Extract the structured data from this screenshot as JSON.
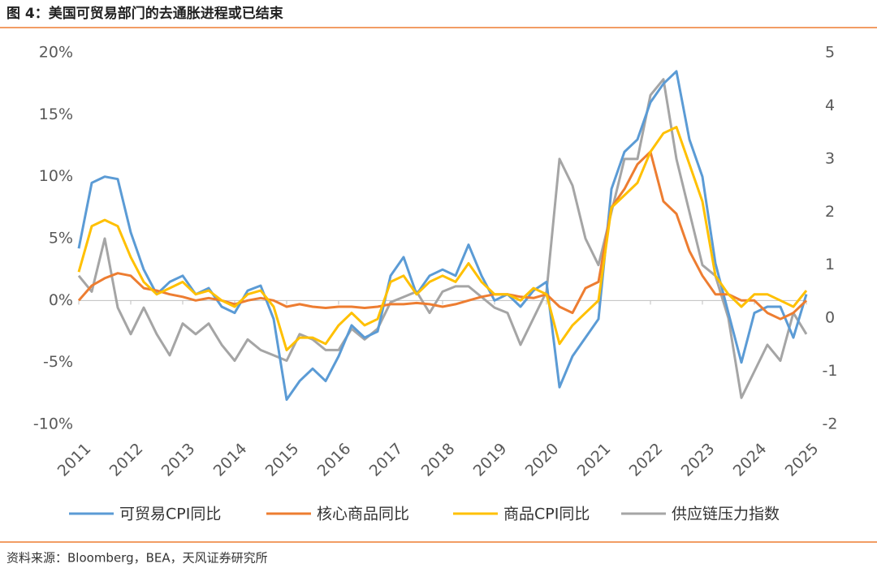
{
  "title": "图 4：美国可贸易部门的去通胀进程或已结束",
  "source": "资料来源：Bloomberg，BEA，天风证券研究所",
  "chart_data": {
    "type": "line",
    "x": [
      2011,
      2011.25,
      2011.5,
      2011.75,
      2012,
      2012.25,
      2012.5,
      2012.75,
      2013,
      2013.25,
      2013.5,
      2013.75,
      2014,
      2014.25,
      2014.5,
      2014.75,
      2015,
      2015.25,
      2015.5,
      2015.75,
      2016,
      2016.25,
      2016.5,
      2016.75,
      2017,
      2017.25,
      2017.5,
      2017.75,
      2018,
      2018.25,
      2018.5,
      2018.75,
      2019,
      2019.25,
      2019.5,
      2019.75,
      2020,
      2020.25,
      2020.5,
      2020.75,
      2021,
      2021.25,
      2021.5,
      2021.75,
      2022,
      2022.25,
      2022.5,
      2022.75,
      2023,
      2023.25,
      2023.5,
      2023.75,
      2024,
      2024.25,
      2024.5,
      2024.75,
      2025
    ],
    "xlim": [
      2011,
      2025
    ],
    "xticks": [
      2011,
      2012,
      2013,
      2014,
      2015,
      2016,
      2017,
      2018,
      2019,
      2020,
      2021,
      2022,
      2023,
      2024,
      2025
    ],
    "ylim": [
      -10,
      20
    ],
    "yticks": [
      {
        "value": -10,
        "label": "-10%"
      },
      {
        "value": -5,
        "label": "-5%"
      },
      {
        "value": 0,
        "label": "0%"
      },
      {
        "value": 5,
        "label": "5%"
      },
      {
        "value": 10,
        "label": "10%"
      },
      {
        "value": 15,
        "label": "15%"
      },
      {
        "value": 20,
        "label": "20%"
      }
    ],
    "y2lim": [
      -2,
      5
    ],
    "y2ticks": [
      -2,
      -1,
      0,
      1,
      2,
      3,
      4,
      5
    ],
    "series": [
      {
        "name": "可贸易CPI同比",
        "color": "#5b9bd5",
        "values": [
          4.2,
          9.5,
          10.0,
          9.8,
          5.5,
          2.5,
          0.5,
          1.5,
          2.0,
          0.5,
          1.0,
          -0.5,
          -1.0,
          0.8,
          1.2,
          -1.5,
          -8.0,
          -6.5,
          -5.5,
          -6.5,
          -4.5,
          -2.0,
          -3.0,
          -2.5,
          2.0,
          3.5,
          0.5,
          2.0,
          2.5,
          2.0,
          4.5,
          2.0,
          0.0,
          0.5,
          -0.5,
          0.8,
          1.5,
          -7.0,
          -4.5,
          -3.0,
          -1.5,
          9.0,
          12.0,
          13.0,
          16.0,
          17.5,
          18.5,
          13.0,
          10.0,
          3.0,
          -1.0,
          -5.0,
          -1.0,
          -0.5,
          -0.5,
          -3.0,
          0.5
        ]
      },
      {
        "name": "核心商品同比",
        "color": "#ed7d31",
        "values": [
          0,
          1.2,
          1.8,
          2.2,
          2.0,
          1.0,
          0.8,
          0.5,
          0.3,
          0.0,
          0.2,
          0.0,
          -0.3,
          0.0,
          0.2,
          0.0,
          -0.5,
          -0.3,
          -0.5,
          -0.6,
          -0.5,
          -0.5,
          -0.6,
          -0.5,
          -0.3,
          -0.3,
          -0.2,
          -0.3,
          -0.5,
          -0.3,
          0.0,
          0.3,
          0.5,
          0.5,
          0.3,
          0.2,
          0.5,
          -0.5,
          -1.0,
          1.0,
          1.5,
          7.5,
          9.0,
          11.0,
          12.0,
          8.0,
          7.0,
          4.0,
          2.0,
          0.5,
          0.5,
          0,
          0,
          -1.0,
          -1.5,
          -1.0,
          0
        ]
      },
      {
        "name": "商品CPI同比",
        "color": "#ffc000",
        "values": [
          2.3,
          6.0,
          6.5,
          6.0,
          3.5,
          1.5,
          0.5,
          1.0,
          1.5,
          0.5,
          0.8,
          0,
          -0.5,
          0.5,
          0.8,
          -0.5,
          -4.0,
          -3.0,
          -3.0,
          -3.5,
          -2.0,
          -1.0,
          -2.0,
          -1.5,
          1.5,
          2.0,
          0.5,
          1.5,
          2.0,
          1.5,
          3.0,
          1.5,
          0.5,
          0.5,
          0.0,
          1.0,
          0.5,
          -3.5,
          -2.0,
          -1.0,
          0.0,
          7.5,
          8.5,
          9.5,
          12.0,
          13.5,
          14.0,
          11.0,
          8.0,
          2.0,
          0.5,
          -0.5,
          0.5,
          0.5,
          0.0,
          -0.5,
          0.8
        ]
      },
      {
        "name": "供应链压力指数",
        "color": "#a5a5a5",
        "axis": "y2",
        "values": [
          0.8,
          0.5,
          1.5,
          0.2,
          -0.3,
          0.2,
          -0.3,
          -0.7,
          -0.1,
          -0.3,
          -0.1,
          -0.5,
          -0.8,
          -0.4,
          -0.6,
          -0.7,
          -0.8,
          -0.3,
          -0.4,
          -0.6,
          -0.6,
          -0.2,
          -0.4,
          -0.2,
          0.3,
          0.4,
          0.5,
          0.1,
          0.5,
          0.6,
          0.6,
          0.4,
          0.2,
          0.1,
          -0.5,
          0.0,
          0.5,
          3.0,
          2.5,
          1.5,
          1.0,
          2.0,
          3.0,
          3.0,
          4.2,
          4.5,
          3.0,
          2.0,
          1.0,
          0.8,
          0.0,
          -1.5,
          -1.0,
          -0.5,
          -0.8,
          0.1,
          -0.3
        ]
      }
    ]
  }
}
